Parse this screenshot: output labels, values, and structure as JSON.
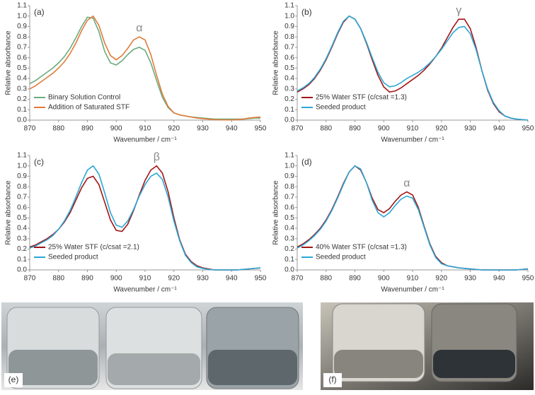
{
  "chart_data": [
    {
      "type": "line",
      "panel": "(a)",
      "annotation": "α",
      "xlabel": "Wavenumber / cm⁻¹",
      "ylabel": "Relative absorbance",
      "xlim": [
        870,
        950
      ],
      "xticks": [
        870,
        880,
        890,
        900,
        910,
        920,
        930,
        940,
        950
      ],
      "ylim": [
        0,
        1.1
      ],
      "yticks": [
        {
          "value": 0,
          "label": "0.0"
        },
        0.1,
        0.2,
        0.3,
        0.4,
        0.5,
        0.6,
        0.7,
        0.8,
        0.9,
        {
          "value": 1,
          "label": "1.0"
        },
        1.1
      ],
      "x": [
        870,
        872,
        874,
        876,
        878,
        880,
        882,
        884,
        886,
        888,
        890,
        892,
        894,
        896,
        898,
        900,
        902,
        904,
        906,
        908,
        910,
        912,
        914,
        916,
        918,
        920,
        922,
        924,
        926,
        928,
        930,
        932,
        934,
        936,
        938,
        940,
        942,
        944,
        946,
        948,
        950
      ],
      "series": [
        {
          "name": "Binary Solution Control",
          "color": "#6aab7e",
          "values": [
            0.35,
            0.38,
            0.42,
            0.46,
            0.5,
            0.55,
            0.61,
            0.69,
            0.79,
            0.9,
            0.99,
            0.98,
            0.85,
            0.66,
            0.55,
            0.53,
            0.57,
            0.63,
            0.68,
            0.7,
            0.67,
            0.55,
            0.38,
            0.22,
            0.12,
            0.07,
            0.05,
            0.04,
            0.03,
            0.025,
            0.02,
            0.015,
            0.01,
            0.01,
            0.01,
            0.01,
            0.01,
            0.01,
            0.015,
            0.02,
            0.02
          ]
        },
        {
          "name": "Addition of Saturated STF",
          "color": "#e07b39",
          "values": [
            0.3,
            0.33,
            0.37,
            0.41,
            0.45,
            0.5,
            0.56,
            0.64,
            0.74,
            0.86,
            0.96,
            1.0,
            0.91,
            0.74,
            0.62,
            0.58,
            0.62,
            0.69,
            0.77,
            0.8,
            0.77,
            0.63,
            0.43,
            0.25,
            0.13,
            0.07,
            0.05,
            0.04,
            0.03,
            0.02,
            0.015,
            0.01,
            0.005,
            0.003,
            0.002,
            0.002,
            0.005,
            0.01,
            0.02,
            0.025,
            0.03
          ]
        }
      ]
    },
    {
      "type": "line",
      "panel": "(b)",
      "annotation": "γ",
      "xlabel": "Wavenumber / cm⁻¹",
      "ylabel": "Relative absorbance",
      "xlim": [
        870,
        950
      ],
      "xticks": [
        870,
        880,
        890,
        900,
        910,
        920,
        930,
        940,
        950
      ],
      "ylim": [
        0,
        1.1
      ],
      "yticks": [
        {
          "value": 0,
          "label": "0.0"
        },
        0.1,
        0.2,
        0.3,
        0.4,
        0.5,
        0.6,
        0.7,
        0.8,
        0.9,
        {
          "value": 1,
          "label": "1.0"
        },
        1.1
      ],
      "x": [
        870,
        872,
        874,
        876,
        878,
        880,
        882,
        884,
        886,
        888,
        890,
        892,
        894,
        896,
        898,
        900,
        902,
        904,
        906,
        908,
        910,
        912,
        914,
        916,
        918,
        920,
        922,
        924,
        926,
        928,
        930,
        932,
        934,
        936,
        938,
        940,
        942,
        944,
        946,
        948,
        950
      ],
      "series": [
        {
          "name": "25% Water STF (c/csat =1.3)",
          "color": "#a31515",
          "values": [
            0.27,
            0.3,
            0.34,
            0.4,
            0.48,
            0.58,
            0.7,
            0.83,
            0.94,
            1.0,
            0.97,
            0.88,
            0.74,
            0.58,
            0.43,
            0.32,
            0.27,
            0.28,
            0.31,
            0.35,
            0.39,
            0.43,
            0.48,
            0.54,
            0.61,
            0.69,
            0.79,
            0.89,
            0.97,
            0.97,
            0.88,
            0.7,
            0.48,
            0.29,
            0.16,
            0.08,
            0.04,
            0.02,
            0.01,
            0.005,
            0
          ]
        },
        {
          "name": "Seeded product",
          "color": "#2aa7d6",
          "values": [
            0.28,
            0.31,
            0.35,
            0.41,
            0.49,
            0.59,
            0.71,
            0.84,
            0.95,
            1.0,
            0.97,
            0.88,
            0.75,
            0.6,
            0.46,
            0.36,
            0.32,
            0.33,
            0.36,
            0.4,
            0.43,
            0.46,
            0.5,
            0.55,
            0.61,
            0.68,
            0.76,
            0.84,
            0.89,
            0.9,
            0.83,
            0.68,
            0.48,
            0.3,
            0.17,
            0.09,
            0.04,
            0.02,
            0.01,
            0.005,
            0
          ]
        }
      ]
    },
    {
      "type": "line",
      "panel": "(c)",
      "annotation": "β",
      "xlabel": "Wavenumber / cm⁻¹",
      "ylabel": "Relative absorbance",
      "xlim": [
        870,
        950
      ],
      "xticks": [
        870,
        880,
        890,
        900,
        910,
        920,
        930,
        940,
        950
      ],
      "ylim": [
        0,
        1.1
      ],
      "yticks": [
        {
          "value": 0,
          "label": "0.0"
        },
        0.1,
        0.2,
        0.3,
        0.4,
        0.5,
        0.6,
        0.7,
        0.8,
        0.9,
        {
          "value": 1,
          "label": "1.0"
        },
        1.1
      ],
      "x": [
        870,
        872,
        874,
        876,
        878,
        880,
        882,
        884,
        886,
        888,
        890,
        892,
        894,
        896,
        898,
        900,
        902,
        904,
        906,
        908,
        910,
        912,
        914,
        916,
        918,
        920,
        922,
        924,
        926,
        928,
        930,
        932,
        934,
        936,
        938,
        940,
        942,
        944,
        946,
        948,
        950
      ],
      "series": [
        {
          "name": "25% Water STF (c/csat =2.1)",
          "color": "#a31515",
          "values": [
            0.22,
            0.24,
            0.27,
            0.3,
            0.34,
            0.39,
            0.46,
            0.55,
            0.67,
            0.79,
            0.88,
            0.9,
            0.82,
            0.65,
            0.48,
            0.38,
            0.37,
            0.44,
            0.57,
            0.72,
            0.86,
            0.96,
            1.0,
            0.93,
            0.75,
            0.5,
            0.29,
            0.15,
            0.08,
            0.04,
            0.02,
            0.01,
            0,
            0,
            0,
            0,
            0,
            0.005,
            0.01,
            0.015,
            0.02
          ]
        },
        {
          "name": "Seeded product",
          "color": "#2aa7d6",
          "values": [
            0.21,
            0.23,
            0.26,
            0.29,
            0.33,
            0.39,
            0.47,
            0.57,
            0.7,
            0.84,
            0.96,
            1.0,
            0.92,
            0.74,
            0.55,
            0.43,
            0.41,
            0.47,
            0.58,
            0.71,
            0.82,
            0.9,
            0.93,
            0.87,
            0.7,
            0.47,
            0.28,
            0.14,
            0.07,
            0.03,
            0.015,
            0.005,
            0,
            0,
            0,
            0,
            0,
            0.005,
            0.01,
            0.015,
            0.02
          ]
        }
      ]
    },
    {
      "type": "line",
      "panel": "(d)",
      "annotation": "α",
      "xlabel": "Wavenumber / cm⁻¹",
      "ylabel": "Relative absorbance",
      "xlim": [
        870,
        950
      ],
      "xticks": [
        870,
        880,
        890,
        900,
        910,
        920,
        930,
        940,
        950
      ],
      "ylim": [
        0,
        1.1
      ],
      "yticks": [
        {
          "value": 0,
          "label": "0.0"
        },
        0.1,
        0.2,
        0.3,
        0.4,
        0.5,
        0.6,
        0.7,
        0.8,
        0.9,
        {
          "value": 1,
          "label": "1.0"
        },
        1.1
      ],
      "x": [
        870,
        872,
        874,
        876,
        878,
        880,
        882,
        884,
        886,
        888,
        890,
        892,
        894,
        896,
        898,
        900,
        902,
        904,
        906,
        908,
        910,
        912,
        914,
        916,
        918,
        920,
        922,
        924,
        926,
        928,
        930,
        932,
        934,
        936,
        938,
        940,
        942,
        944,
        946,
        948,
        950
      ],
      "series": [
        {
          "name": "40% Water STF (c/csat =1.3)",
          "color": "#a31515",
          "values": [
            0.22,
            0.25,
            0.29,
            0.34,
            0.4,
            0.48,
            0.58,
            0.7,
            0.83,
            0.94,
            1.0,
            0.96,
            0.84,
            0.69,
            0.58,
            0.55,
            0.59,
            0.66,
            0.72,
            0.75,
            0.72,
            0.6,
            0.42,
            0.25,
            0.13,
            0.07,
            0.04,
            0.03,
            0.02,
            0.015,
            0.01,
            0.005,
            0,
            0,
            0,
            0,
            0,
            0,
            0,
            0.005,
            0.01
          ]
        },
        {
          "name": "Seeded product",
          "color": "#2aa7d6",
          "values": [
            0.21,
            0.24,
            0.28,
            0.33,
            0.39,
            0.47,
            0.57,
            0.69,
            0.82,
            0.94,
            1.0,
            0.97,
            0.84,
            0.67,
            0.55,
            0.51,
            0.55,
            0.62,
            0.68,
            0.71,
            0.69,
            0.58,
            0.41,
            0.24,
            0.12,
            0.06,
            0.04,
            0.03,
            0.02,
            0.015,
            0.01,
            0.005,
            0,
            0,
            0,
            0,
            0,
            0,
            0,
            0.005,
            0.01
          ]
        }
      ]
    }
  ],
  "photos": [
    {
      "label": "(e)"
    },
    {
      "label": "(f)"
    }
  ]
}
